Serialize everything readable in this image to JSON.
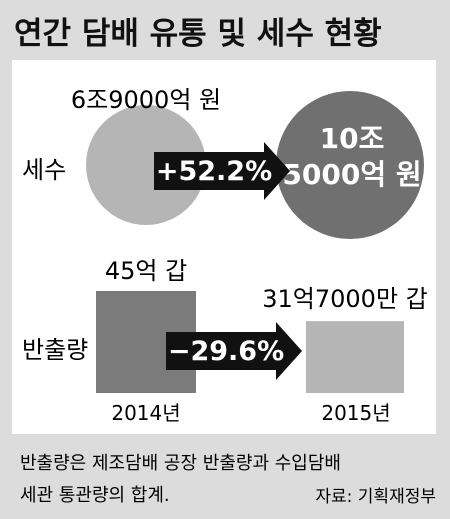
{
  "title": "연간 담배 유통 및 세수 현황",
  "colors": {
    "background": "#dcdcdc",
    "panel": "#ffffff",
    "title_text": "#111111",
    "circle_2014": "#b5b5b5",
    "circle_2015": "#707070",
    "bar_2014": "#7b7b7b",
    "bar_2015": "#b5b5b5",
    "arrow": "#111111",
    "arrow_text": "#ffffff"
  },
  "chart_data": [
    {
      "type": "bubble",
      "row_label": "세수",
      "categories": [
        "2014년",
        "2015년"
      ],
      "values": [
        69000,
        105000
      ],
      "unit": "억 원",
      "data_labels": [
        "6조9000억 원",
        "10조\n5000억 원"
      ],
      "change_label": "+52.2%"
    },
    {
      "type": "bar",
      "row_label": "반출량",
      "categories": [
        "2014년",
        "2015년"
      ],
      "values": [
        45,
        31.7
      ],
      "unit": "억 갑",
      "data_labels": [
        "45억 갑",
        "31억7000만 갑"
      ],
      "change_label": "−29.6%"
    }
  ],
  "footnote": "반출량은 제조담배 공장 반출량과 수입담배\n세관 통관량의 합계.",
  "source": "자료: 기획재정부"
}
